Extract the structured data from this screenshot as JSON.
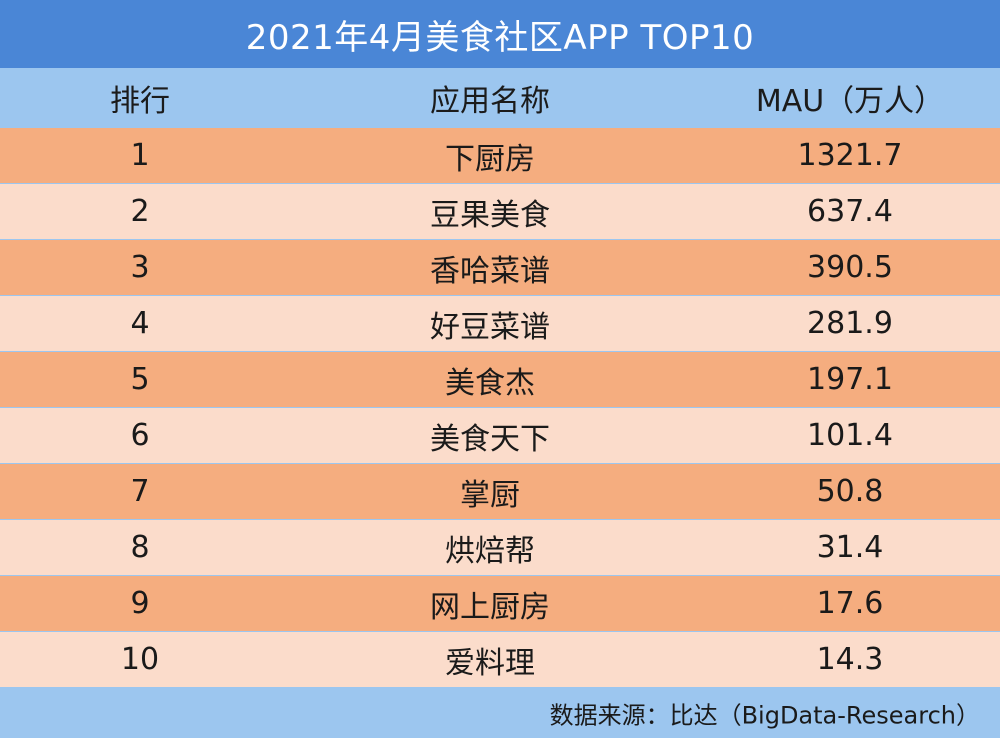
{
  "title": "2021年4月美食社区APP TOP10",
  "headers": {
    "rank": "排行",
    "app_name": "应用名称",
    "mau": "MAU（万人）"
  },
  "source": "数据来源：比达（BigData-Research）",
  "colors": {
    "title_bg": "#4a86d6",
    "header_bg": "#9cc6ef",
    "row_dark": "#f5ad7f",
    "row_light": "#fbdccb"
  },
  "chart_data": {
    "type": "table",
    "title": "2021年4月美食社区APP TOP10",
    "columns": [
      "排行",
      "应用名称",
      "MAU（万人）"
    ],
    "rows": [
      {
        "rank": "1",
        "app": "下厨房",
        "mau": "1321.7"
      },
      {
        "rank": "2",
        "app": "豆果美食",
        "mau": "637.4"
      },
      {
        "rank": "3",
        "app": "香哈菜谱",
        "mau": "390.5"
      },
      {
        "rank": "4",
        "app": "好豆菜谱",
        "mau": "281.9"
      },
      {
        "rank": "5",
        "app": "美食杰",
        "mau": "197.1"
      },
      {
        "rank": "6",
        "app": "美食天下",
        "mau": "101.4"
      },
      {
        "rank": "7",
        "app": "掌厨",
        "mau": "50.8"
      },
      {
        "rank": "8",
        "app": "烘焙帮",
        "mau": "31.4"
      },
      {
        "rank": "9",
        "app": "网上厨房",
        "mau": "17.6"
      },
      {
        "rank": "10",
        "app": "爱料理",
        "mau": "14.3"
      }
    ]
  }
}
